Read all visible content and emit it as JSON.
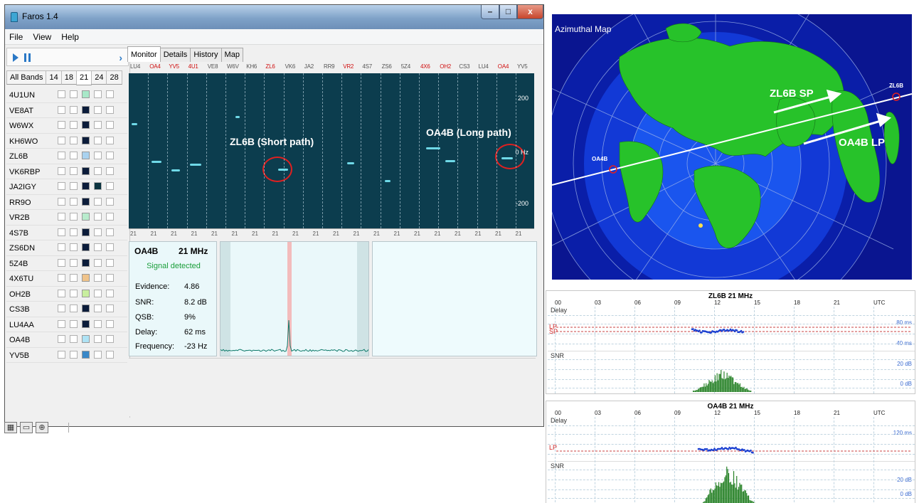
{
  "window": {
    "title": "Faros 1.4",
    "min": "–",
    "max": "□",
    "close": "x"
  },
  "menu": [
    "File",
    "View",
    "Help"
  ],
  "bands": [
    "All Bands",
    "14",
    "18",
    "21",
    "24",
    "28"
  ],
  "beacons": [
    {
      "call": "4U1UN",
      "mark": "#a8e8c8"
    },
    {
      "call": "VE8AT",
      "mark": "#0b1c3a"
    },
    {
      "call": "W6WX",
      "mark": "#0b1c3a"
    },
    {
      "call": "KH6WO",
      "mark": "#0b1c3a"
    },
    {
      "call": "ZL6B",
      "mark": "#a9d2ef"
    },
    {
      "call": "VK6RBP",
      "mark": "#0b1c3a"
    },
    {
      "call": "JA2IGY",
      "mark": "#0b1c3a",
      "mark2": "#0b3440"
    },
    {
      "call": "RR9O",
      "mark": "#0b1c3a"
    },
    {
      "call": "VR2B",
      "mark": "#b8eccd"
    },
    {
      "call": "4S7B",
      "mark": "#0b1c3a"
    },
    {
      "call": "ZS6DN",
      "mark": "#0b1c3a"
    },
    {
      "call": "5Z4B",
      "mark": "#0b1c3a"
    },
    {
      "call": "4X6TU",
      "mark": "#f0c38a"
    },
    {
      "call": "OH2B",
      "mark": "#c8ee9e"
    },
    {
      "call": "CS3B",
      "mark": "#0b1c3a"
    },
    {
      "call": "LU4AA",
      "mark": "#0b1c3a"
    },
    {
      "call": "OA4B",
      "mark": "#aee3f5"
    },
    {
      "call": "YV5B",
      "mark": "#3a88c8"
    }
  ],
  "tabs": [
    "Monitor",
    "Details",
    "History",
    "Map"
  ],
  "callrow": [
    {
      "t": "LU4",
      "red": false
    },
    {
      "t": "OA4",
      "red": true
    },
    {
      "t": "YV5",
      "red": true
    },
    {
      "t": "4U1",
      "red": true
    },
    {
      "t": "VE8",
      "red": false
    },
    {
      "t": "W6V",
      "red": false
    },
    {
      "t": "KH6",
      "red": false
    },
    {
      "t": "ZL6",
      "red": true
    },
    {
      "t": "VK6",
      "red": false
    },
    {
      "t": "JA2",
      "red": false
    },
    {
      "t": "RR9",
      "red": false
    },
    {
      "t": "VR2",
      "red": true
    },
    {
      "t": "4S7",
      "red": false
    },
    {
      "t": "ZS6",
      "red": false
    },
    {
      "t": "5Z4",
      "red": false
    },
    {
      "t": "4X6",
      "red": true
    },
    {
      "t": "OH2",
      "red": true
    },
    {
      "t": "CS3",
      "red": false
    },
    {
      "t": "LU4",
      "red": false
    },
    {
      "t": "OA4",
      "red": true
    },
    {
      "t": "YV5",
      "red": false
    }
  ],
  "waterfall": {
    "label_sp": "ZL6B (Short path)",
    "label_lp": "OA4B (Long path)",
    "ticks": [
      "200",
      "0 Hz",
      "-200"
    ],
    "axis": "21"
  },
  "detail": {
    "call": "OA4B",
    "band": "21 MHz",
    "status": "Signal detected",
    "rows": [
      {
        "k": "Evidence:",
        "v": "4.86"
      },
      {
        "k": "SNR:",
        "v": "8.2 dB"
      },
      {
        "k": "QSB:",
        "v": "9%"
      },
      {
        "k": "Delay:",
        "v": "62 ms"
      },
      {
        "k": "Frequency:",
        "v": "-23 Hz"
      }
    ]
  },
  "map": {
    "title": "Azimuthal Map",
    "zl6b_sp": "ZL6B SP",
    "oa4b_lp": "OA4B LP",
    "zl6b": "ZL6B",
    "oa4b": "OA4B"
  },
  "chart1": {
    "title": "ZL6B  21 MHz",
    "hours": [
      "00",
      "03",
      "06",
      "09",
      "12",
      "15",
      "18",
      "21",
      "UTC"
    ],
    "delay": "Delay",
    "snr": "SNR",
    "lp": "LP",
    "sp": "SP",
    "delay_hi": "80 ms",
    "delay_lo": "40 ms",
    "snr_hi": "20 dB",
    "snr_lo": "0 dB"
  },
  "chart2": {
    "title": "OA4B  21 MHz",
    "hours": [
      "00",
      "03",
      "06",
      "09",
      "12",
      "15",
      "18",
      "21",
      "UTC"
    ],
    "delay": "Delay",
    "snr": "SNR",
    "lp": "LP",
    "delay_hi": "120 ms",
    "snr_hi": "20 dB",
    "snr_lo": "0 dB"
  },
  "colors": {
    "wf_bg": "#0c3d4e",
    "accent": "#2a78c6",
    "red": "#e02020",
    "land": "#27c22a",
    "ocean": "#0a1a9a"
  }
}
